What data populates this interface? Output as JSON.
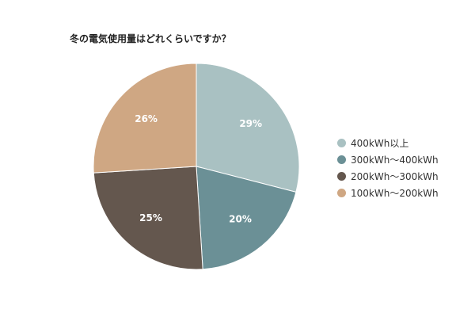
{
  "chart_data": {
    "type": "pie",
    "title": "冬の電気使用量はどれくらいですか？",
    "categories": [
      "400kWh以上",
      "300kWh～400kWh",
      "200kWh～300kWh",
      "100kWh～200kWh"
    ],
    "values": [
      29,
      20,
      25,
      26
    ],
    "labels": [
      "29%",
      "20%",
      "25%",
      "26%"
    ],
    "colors": [
      "#a9c1c2",
      "#6b9096",
      "#64574e",
      "#cfa783"
    ],
    "legend": "right",
    "start": "top",
    "direction": "clockwise"
  }
}
